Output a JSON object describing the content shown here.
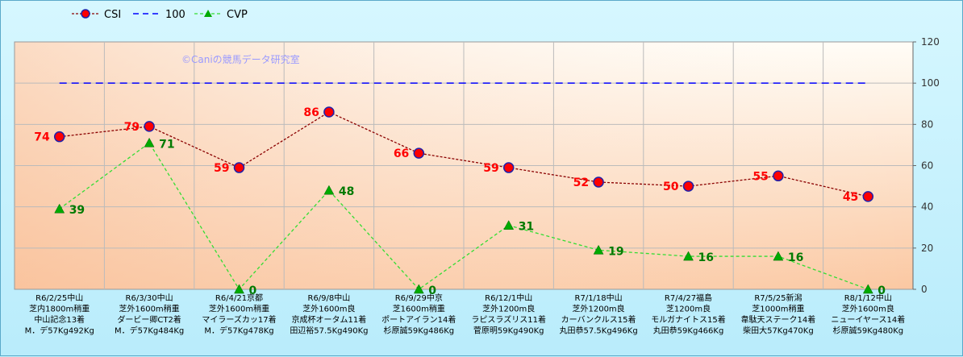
{
  "chart_data": {
    "type": "line",
    "watermark": "©Caniの競馬データ研究室",
    "ylim": [
      0,
      120
    ],
    "yticks": [
      0,
      20,
      40,
      60,
      80,
      100,
      120
    ],
    "categories": [
      [
        "R6/2/25中山",
        "芝内1800m稍重",
        "中山記念13着",
        "M．デ57Kg492Kg"
      ],
      [
        "R6/3/30中山",
        "芝外1600m稍重",
        "ダービー卿CT2着",
        "M．デ57Kg484Kg"
      ],
      [
        "R6/4/21京都",
        "芝外1600m稍重",
        "マイラーズカッ17着",
        "M．デ57Kg478Kg"
      ],
      [
        "R6/9/8中山",
        "芝外1600m良",
        "京成杯オータム11着",
        "田辺裕57.5Kg490Kg"
      ],
      [
        "R6/9/29中京",
        "芝1600m稍重",
        "ポートアイラン14着",
        "杉原誠59Kg486Kg"
      ],
      [
        "R6/12/1中山",
        "芝外1200m良",
        "ラピスラズリス11着",
        "菅原明59Kg490Kg"
      ],
      [
        "R7/1/18中山",
        "芝外1200m良",
        "カーバンクルス15着",
        "丸田恭57.5Kg496Kg"
      ],
      [
        "R7/4/27福島",
        "芝1200m良",
        "モルガナイトス15着",
        "丸田恭59Kg466Kg"
      ],
      [
        "R7/5/25新潟",
        "芝1000m稍重",
        "韋駄天ステーク14着",
        "柴田大57Kg470Kg"
      ],
      [
        "R8/1/12中山",
        "芝外1600m良",
        "ニューイヤース14着",
        "杉原誠59Kg480Kg"
      ]
    ],
    "series": [
      {
        "name": "CSI",
        "values": [
          74,
          79,
          59,
          86,
          66,
          59,
          52,
          50,
          55,
          45
        ],
        "color": "#8b0000",
        "marker_color": "#ff0000"
      },
      {
        "name": "100",
        "values": [
          100,
          100,
          100,
          100,
          100,
          100,
          100,
          100,
          100,
          100
        ],
        "color": "#0000ff"
      },
      {
        "name": "CVP",
        "values": [
          39,
          71,
          0,
          48,
          0,
          31,
          19,
          16,
          16,
          0
        ],
        "color": "#33dd33",
        "marker_color": "#00aa00"
      }
    ]
  }
}
